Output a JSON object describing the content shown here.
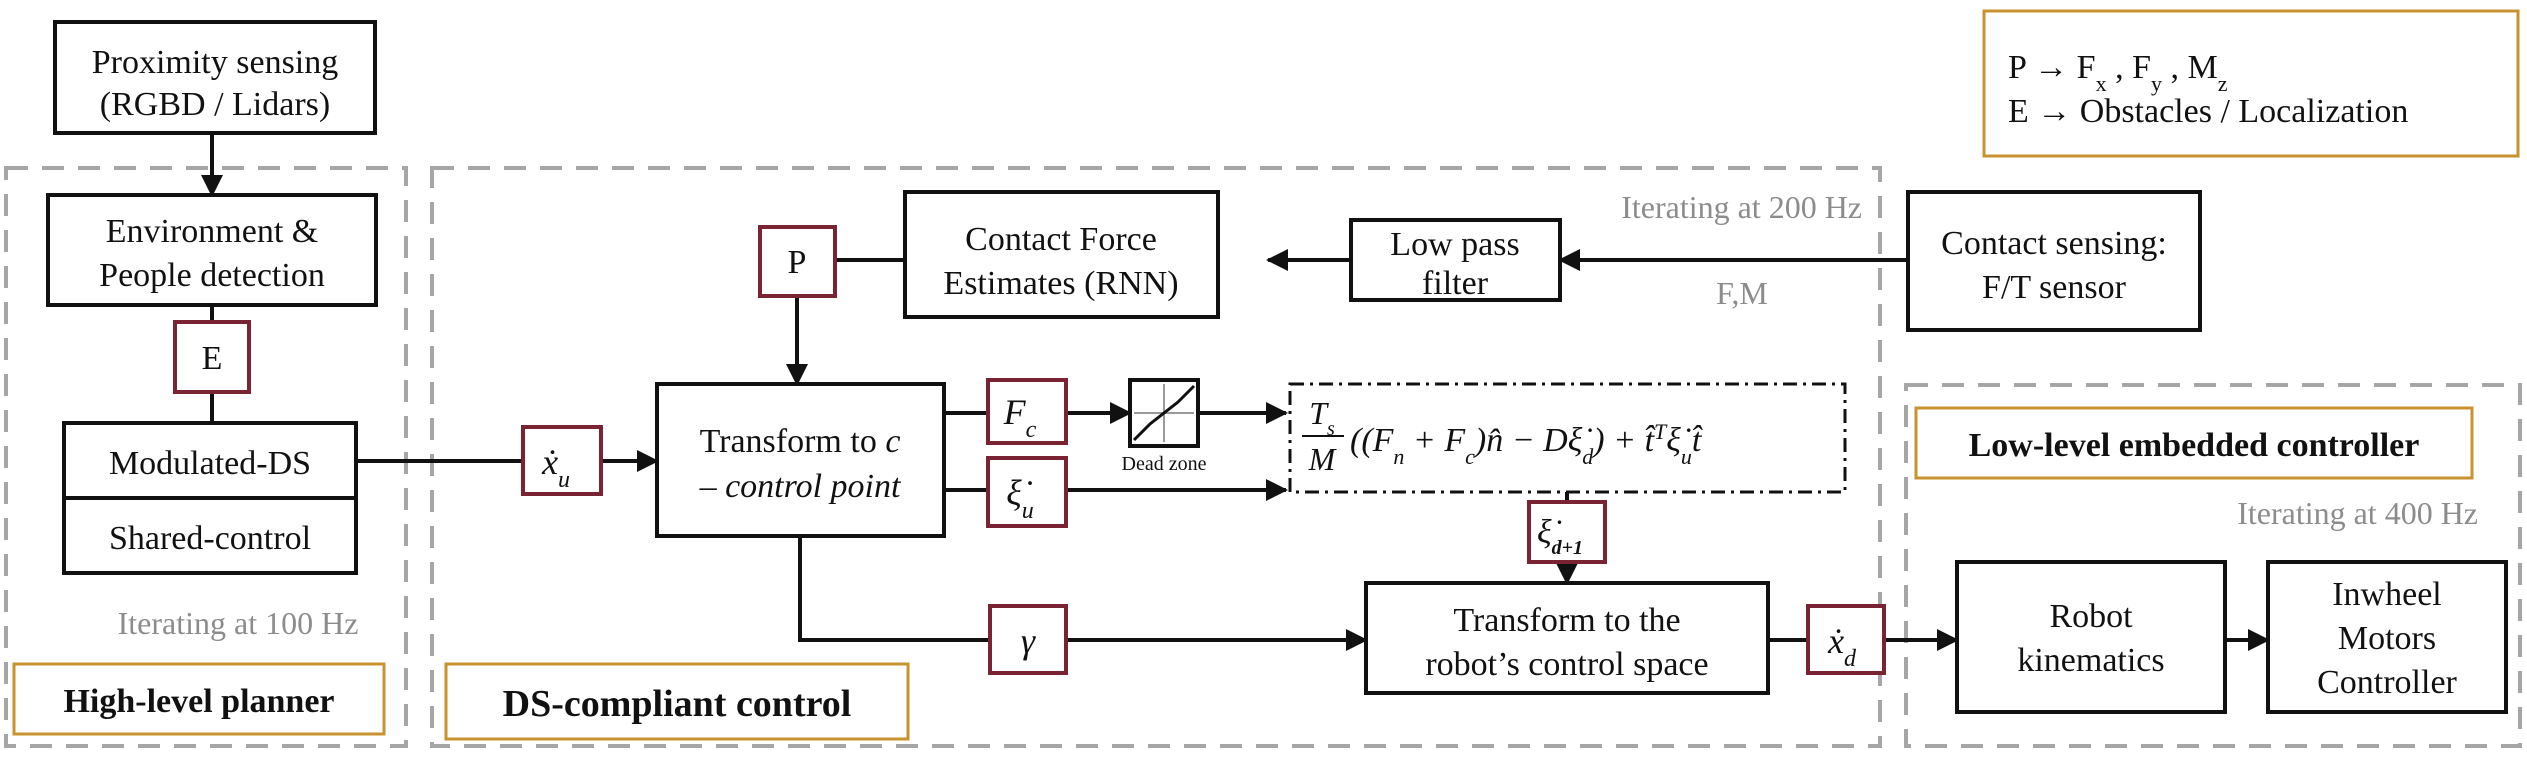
{
  "legend": {
    "line1": {
      "prefix": "P → ",
      "fx": "F",
      "fx_sub": "x",
      "fy": "F",
      "fy_sub": "y",
      "mz": "M",
      "mz_sub": "z",
      "sep": " , "
    },
    "line2": "E → Obstacles / Localization"
  },
  "high_level": {
    "proximity_line1": "Proximity sensing",
    "proximity_line2": "(RGBD / Lidars)",
    "environment_line1": "Environment &",
    "environment_line2": "People detection",
    "e_tag": "E",
    "modulated_ds": "Modulated-DS",
    "shared_control": "Shared-control",
    "iteration": "Iterating at 100 Hz",
    "label": "High-level planner"
  },
  "ds_control": {
    "iteration": "Iterating at 200 Hz",
    "fm_label": "F,M",
    "p_tag": "P",
    "contact_force_line1": "Contact Force",
    "contact_force_line2": "Estimates (RNN)",
    "low_pass_line1": "Low pass",
    "low_pass_line2": "filter",
    "contact_sensing_line1": "Contact sensing:",
    "contact_sensing_line2": "F/T sensor",
    "xu_tag": "ẋ",
    "xu_sub": "u",
    "transform_c_line1": "Transform to ",
    "transform_c_var": "c",
    "transform_c_line2": "– control point",
    "fc_tag": "F",
    "fc_sub": "c",
    "xi_u_tag": "ξ̇",
    "xi_u_sub": "u",
    "dead_zone": "Dead zone",
    "xi_d1_tag": "ξ̇",
    "xi_d1_sub": "d+1",
    "gamma_tag": "γ",
    "transform_robot_line1": "Transform to the",
    "transform_robot_line2": "robot’s control space",
    "xd_tag": "ẋ",
    "xd_sub": "d",
    "label": "DS-compliant control",
    "formula": {
      "ts": "T",
      "ts_sub": "s",
      "m": "M",
      "body1": "((F",
      "fn_sub": "n",
      "plus1": " + F",
      "fc_sub": "c",
      "nhat": ")n̂ − D",
      "xi": "ξ̇",
      "xi_sub": "d",
      "close": ")",
      "plus2": " + ",
      "t_hat": "t̂",
      "t_sup": "T",
      "xi2": "ξ̇",
      "xi2_sub": "u",
      "t_end": "t̂"
    }
  },
  "low_level": {
    "label": "Low-level embedded controller",
    "iteration": "Iterating at 400 Hz",
    "robot_kin_line1": "Robot",
    "robot_kin_line2": "kinematics",
    "motors_line1": "Inwheel",
    "motors_line2": "Motors",
    "motors_line3": "Controller"
  },
  "colors": {
    "tag_border": "#7a2333",
    "label_border": "#c8932f",
    "group_dash": "#a6a6a6"
  }
}
